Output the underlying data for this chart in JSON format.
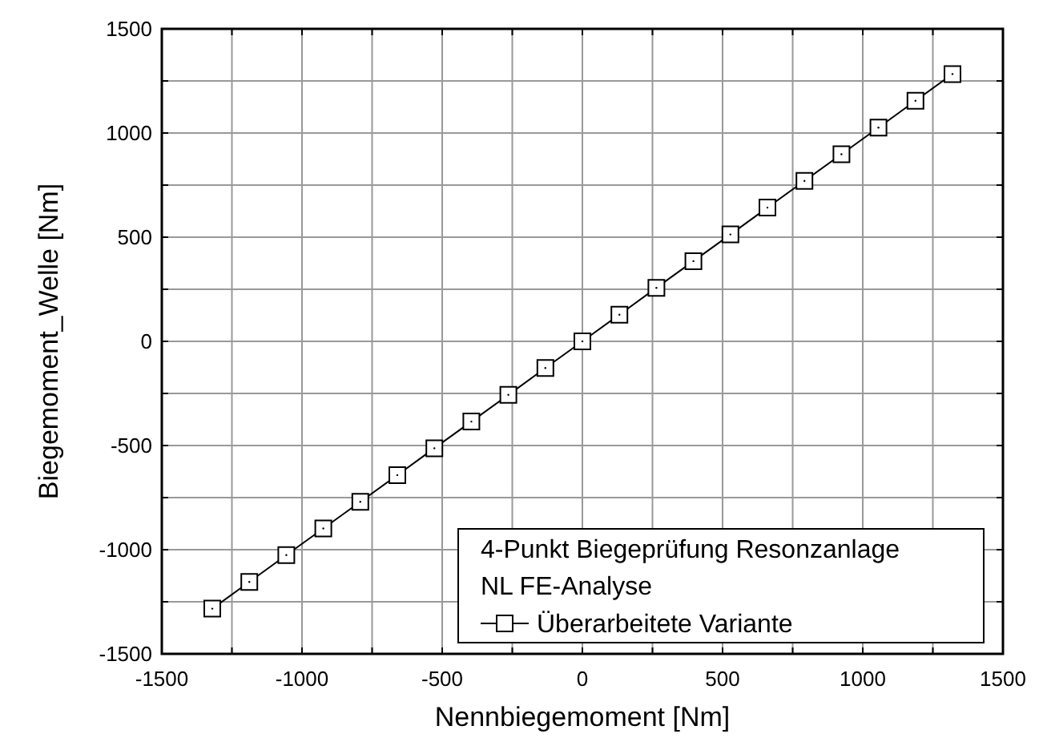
{
  "chart_data": {
    "type": "line",
    "xlabel": "Nennbiegemoment [Nm]",
    "ylabel": "Biegemoment_Welle [Nm]",
    "legend_title": "4-Punkt Biegeprüfung Resonzanlage\nNL FE-Analyse",
    "legend": "bottom right",
    "grid": true,
    "marker": "square",
    "line_style": "solid",
    "xlim": [
      -1500,
      1500
    ],
    "ylim": [
      -1500,
      1500
    ],
    "xticks": [
      -1500,
      {
        "value": -1250,
        "label": null
      },
      -1000,
      {
        "value": -750,
        "label": null
      },
      -500,
      {
        "value": -250,
        "label": null
      },
      0,
      {
        "value": 250,
        "label": null
      },
      500,
      {
        "value": 750,
        "label": null
      },
      1000,
      {
        "value": 1250,
        "label": null
      },
      1500
    ],
    "yticks": [
      -1500,
      {
        "value": -1250,
        "label": null
      },
      -1000,
      {
        "value": -750,
        "label": null
      },
      -500,
      {
        "value": -250,
        "label": null
      },
      0,
      {
        "value": 250,
        "label": null
      },
      500,
      {
        "value": 750,
        "label": null
      },
      1000,
      {
        "value": 1250,
        "label": null
      },
      1500
    ],
    "x": [
      -1320,
      -1188,
      -1056,
      -924,
      -792,
      -660,
      -528,
      -396,
      -264,
      -132,
      0,
      132,
      264,
      396,
      528,
      660,
      792,
      924,
      1056,
      1188,
      1320
    ],
    "series": [
      {
        "name": "Überarbeitete Variante",
        "color": "#000000",
        "values": [
          -1283,
          -1155,
          -1026,
          -898,
          -770,
          -642,
          -513,
          -385,
          -257,
          -128,
          0,
          128,
          257,
          385,
          513,
          642,
          770,
          898,
          1026,
          1155,
          1283
        ]
      }
    ]
  }
}
